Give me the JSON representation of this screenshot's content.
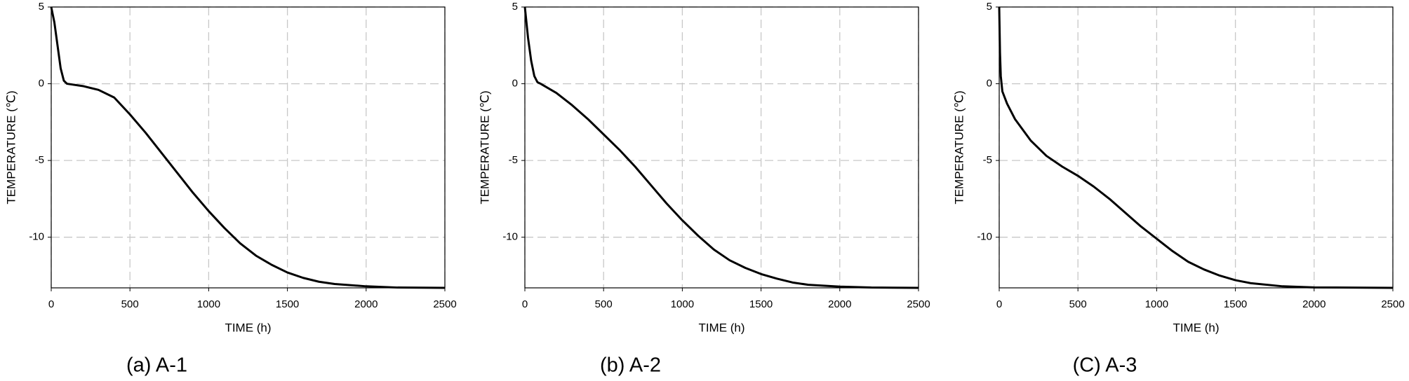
{
  "chart_data": [
    {
      "type": "line",
      "caption": "(a) A-1",
      "xlabel": "TIME (h)",
      "ylabel": "TEMPERATURE (℃)",
      "xlim": [
        0,
        2500
      ],
      "xticks": [
        0,
        500,
        1000,
        1500,
        2000,
        2500
      ],
      "ylim": [
        -13.3,
        5
      ],
      "yticks": [
        -10,
        -5,
        0,
        5
      ],
      "grid": true,
      "color": "#000000",
      "x": [
        0,
        20,
        40,
        60,
        80,
        100,
        200,
        300,
        400,
        500,
        600,
        700,
        800,
        900,
        1000,
        1100,
        1200,
        1300,
        1400,
        1500,
        1600,
        1700,
        1800,
        2000,
        2200,
        2500
      ],
      "values": [
        5,
        4,
        2.5,
        1,
        0.2,
        0,
        -0.15,
        -0.4,
        -0.9,
        -2,
        -3.2,
        -4.5,
        -5.8,
        -7.1,
        -8.3,
        -9.4,
        -10.4,
        -11.2,
        -11.8,
        -12.3,
        -12.65,
        -12.9,
        -13.05,
        -13.2,
        -13.28,
        -13.3
      ]
    },
    {
      "type": "line",
      "caption": "(b) A-2",
      "xlabel": "TIME (h)",
      "ylabel": "TEMPERATURE (℃)",
      "xlim": [
        0,
        2500
      ],
      "xticks": [
        0,
        500,
        1000,
        1500,
        2000,
        2500
      ],
      "ylim": [
        -13.3,
        5
      ],
      "yticks": [
        -10,
        -5,
        0,
        5
      ],
      "grid": true,
      "color": "#000000",
      "x": [
        0,
        20,
        40,
        60,
        80,
        100,
        200,
        300,
        400,
        500,
        600,
        700,
        800,
        900,
        1000,
        1100,
        1200,
        1300,
        1400,
        1500,
        1600,
        1700,
        1800,
        2000,
        2200,
        2500
      ],
      "values": [
        5,
        3,
        1.5,
        0.5,
        0.1,
        0,
        -0.6,
        -1.4,
        -2.3,
        -3.3,
        -4.3,
        -5.4,
        -6.6,
        -7.8,
        -8.9,
        -9.9,
        -10.8,
        -11.5,
        -12,
        -12.4,
        -12.7,
        -12.95,
        -13.1,
        -13.22,
        -13.28,
        -13.3
      ]
    },
    {
      "type": "line",
      "caption": "(C) A-3",
      "xlabel": "TIME (h)",
      "ylabel": "TEMPERATURE (℃)",
      "xlim": [
        0,
        2500
      ],
      "xticks": [
        0,
        500,
        1000,
        1500,
        2000,
        2500
      ],
      "ylim": [
        -13.3,
        5
      ],
      "yticks": [
        -10,
        -5,
        0,
        5
      ],
      "grid": true,
      "color": "#000000",
      "x": [
        0,
        5,
        10,
        20,
        50,
        100,
        200,
        300,
        400,
        500,
        600,
        700,
        800,
        900,
        1000,
        1100,
        1200,
        1300,
        1400,
        1500,
        1600,
        1800,
        2000,
        2500
      ],
      "values": [
        5,
        2,
        0.5,
        -0.5,
        -1.3,
        -2.3,
        -3.7,
        -4.7,
        -5.4,
        -6,
        -6.7,
        -7.5,
        -8.4,
        -9.3,
        -10.1,
        -10.9,
        -11.6,
        -12.1,
        -12.5,
        -12.8,
        -13,
        -13.2,
        -13.27,
        -13.3
      ]
    }
  ]
}
